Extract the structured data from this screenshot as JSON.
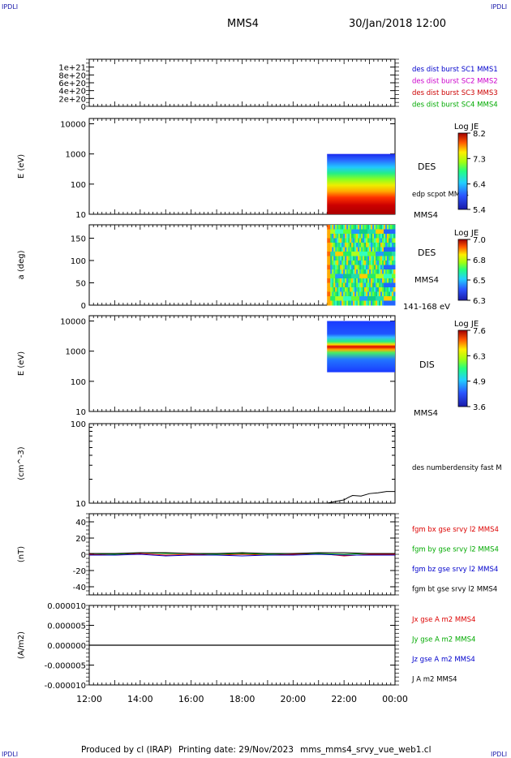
{
  "header": {
    "logo": "IPDLI",
    "spacecraft": "MMS4",
    "datetime": "30/Jan/2018 12:00"
  },
  "footer": {
    "produced_by": "Produced by cl (IRAP)",
    "printing_date": "Printing date: 29/Nov/2023",
    "filename": "mms_mms4_srvy_vue_web1.cl"
  },
  "colors": {
    "mms1": "#0000cc",
    "mms2": "#cc00cc",
    "mms3": "#cc0000",
    "mms4": "#00aa00",
    "bx": "#dd0000",
    "by": "#00aa00",
    "bz": "#0000cc",
    "bt": "#000000"
  },
  "chart_data": [
    {
      "type": "line",
      "ylim": [
        0,
        1.2e+21
      ],
      "yticks": [
        "1e+21",
        "8e+20",
        "6e+20",
        "4e+20",
        "2e+20",
        "0"
      ],
      "series": [
        {
          "name": "des dist burst SC1 MMS1",
          "values": [
            0,
            0
          ]
        },
        {
          "name": "des dist burst SC2 MMS2",
          "values": [
            0,
            0
          ]
        },
        {
          "name": "des dist burst SC3 MMS3",
          "values": [
            0,
            0
          ]
        },
        {
          "name": "des dist burst SC4 MMS4",
          "values": [
            0,
            0
          ]
        }
      ]
    },
    {
      "type": "heatmap",
      "ylabel": "E (eV)",
      "yscale": "log",
      "ylim": [
        10,
        15000
      ],
      "yticks": [
        "10000",
        "1000",
        "100",
        "10"
      ],
      "label": "DES",
      "overlay": "edp scpot MMS4",
      "bottom_label": "MMS4",
      "colorbar": {
        "title": "Log JE",
        "ticks": [
          "8.2",
          "7.3",
          "6.4",
          "5.4"
        ]
      },
      "data_start": "21:20",
      "data_end": "00:00"
    },
    {
      "type": "heatmap",
      "ylabel": "a (deg)",
      "ylim": [
        0,
        180
      ],
      "yticks": [
        "150",
        "100",
        "50",
        "0"
      ],
      "label": "DES",
      "sublabel": "MMS4",
      "bottom_label": "141-168 eV",
      "colorbar": {
        "title": "Log JE",
        "ticks": [
          "7.0",
          "6.8",
          "6.5",
          "6.3"
        ]
      },
      "data_start": "21:20",
      "data_end": "00:00"
    },
    {
      "type": "heatmap",
      "ylabel": "E (eV)",
      "yscale": "log",
      "ylim": [
        10,
        15000
      ],
      "yticks": [
        "10000",
        "1000",
        "100",
        "10"
      ],
      "label": "DIS",
      "bottom_label": "MMS4",
      "colorbar": {
        "title": "Log JE",
        "ticks": [
          "7.6",
          "6.3",
          "4.9",
          "3.6"
        ]
      },
      "data_start": "21:20",
      "data_end": "00:00"
    },
    {
      "type": "line",
      "ylabel": "(cm^-3)",
      "yscale": "log",
      "ylim": [
        10,
        100
      ],
      "yticks": [
        "100",
        "10"
      ],
      "series": [
        {
          "name": "des numberdensity fast M",
          "x": [
            "21:20",
            "21:40",
            "22:00",
            "22:10",
            "22:20",
            "22:40",
            "23:00",
            "23:20",
            "23:40",
            "00:00"
          ],
          "values": [
            10,
            10.5,
            11,
            11.8,
            12.5,
            12.3,
            13.2,
            13.5,
            14,
            14
          ]
        }
      ]
    },
    {
      "type": "line",
      "ylabel": "(nT)",
      "ylim": [
        -50,
        50
      ],
      "yticks": [
        "40",
        "20",
        "0",
        "-20",
        "-40"
      ],
      "x": [
        "12:00",
        "13:00",
        "14:00",
        "15:00",
        "16:00",
        "17:00",
        "18:00",
        "19:00",
        "20:00",
        "21:00",
        "22:00",
        "23:00",
        "00:00"
      ],
      "series": [
        {
          "name": "fgm bx gse srvy l2 MMS4",
          "values": [
            0,
            -1,
            1,
            -1,
            0,
            -1,
            0,
            -1,
            0,
            1,
            -2,
            0,
            0
          ]
        },
        {
          "name": "fgm by gse srvy l2 MMS4",
          "values": [
            1,
            0,
            2,
            1,
            1,
            0,
            1,
            0,
            1,
            1,
            0,
            1,
            1
          ]
        },
        {
          "name": "fgm bz gse srvy l2 MMS4",
          "values": [
            -1,
            -1,
            0,
            -2,
            -1,
            -1,
            -2,
            -1,
            -1,
            0,
            -1,
            -1,
            -1
          ]
        },
        {
          "name": "fgm bt gse srvy l2 MMS4",
          "values": [
            1,
            1,
            2,
            2,
            1,
            1,
            2,
            1,
            1,
            2,
            2,
            1,
            1
          ]
        }
      ]
    },
    {
      "type": "line",
      "ylabel": "(A/m2)",
      "ylim": [
        -1e-05,
        1e-05
      ],
      "yticks": [
        "0.000010",
        "0.000005",
        "0.000000",
        "-0.000005",
        "-0.000010"
      ],
      "series": [
        {
          "name": "Jx gse A m2 MMS4",
          "values": [
            0,
            0
          ]
        },
        {
          "name": "Jy gse A m2 MMS4",
          "values": [
            0,
            0
          ]
        },
        {
          "name": "Jz gse A m2 MMS4",
          "values": [
            0,
            0
          ]
        },
        {
          "name": "J A m2 MMS4",
          "values": [
            0,
            0
          ]
        }
      ]
    }
  ],
  "xaxis": {
    "ticks": [
      "12:00",
      "14:00",
      "16:00",
      "18:00",
      "20:00",
      "22:00",
      "00:00"
    ]
  }
}
